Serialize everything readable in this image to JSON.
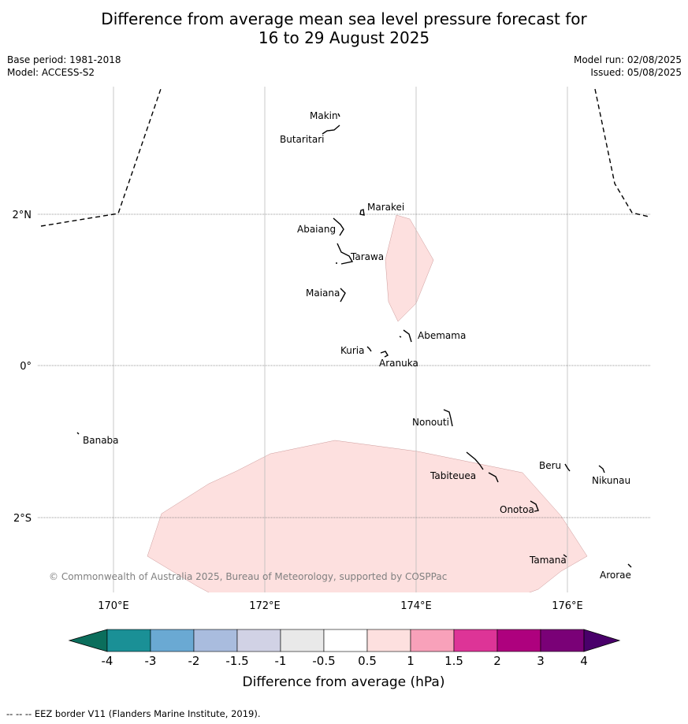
{
  "title_line1": "Difference from average mean sea level pressure forecast for",
  "title_line2": "16 to 29 August 2025",
  "base_period": "Base period: 1981-2018",
  "model": "Model: ACCESS-S2",
  "model_run": "Model run: 02/08/2025",
  "issued": "Issued: 05/08/2025",
  "copyright": "© Commonwealth of Australia 2025, Bureau of Meteorology, supported by COSPPac",
  "lat_labels": {
    "n2": "2°N",
    "eq": "0°",
    "s2": "2°S"
  },
  "lon_labels": {
    "e170": "170°E",
    "e172": "172°E",
    "e174": "174°E",
    "e176": "176°E"
  },
  "islands": {
    "makin": "Makin",
    "butaritari": "Butaritari",
    "marakei": "Marakei",
    "abaiang": "Abaiang",
    "tarawa": "Tarawa",
    "maiana": "Maiana",
    "abemama": "Abemama",
    "kuria": "Kuria",
    "aranuka": "Aranuka",
    "banaba": "Banaba",
    "nonouti": "Nonouti",
    "beru": "Beru",
    "nikunau": "Nikunau",
    "tabiteuea": "Tabiteuea",
    "onotoa": "Onotoa",
    "tamana": "Tamana",
    "arorae": "Arorae"
  },
  "colorbar": {
    "label": "Difference from average (hPa)",
    "ticks": [
      "-4",
      "-3",
      "-2",
      "-1.5",
      "-1",
      "-0.5",
      "0.5",
      "1",
      "1.5",
      "2",
      "3",
      "4"
    ],
    "colors": [
      "#1a9096",
      "#6aa9d3",
      "#a9bcde",
      "#d1d2e5",
      "#e9e9e9",
      "#ffffff",
      "#fde0df",
      "#f8a1ba",
      "#dd3497",
      "#ae017e",
      "#7a0177"
    ],
    "under_color": "#0b6e5c",
    "over_color": "#49006a",
    "anomaly_fill": "#fde0df"
  },
  "footnote": "--  --  -- EEZ border V11 (Flanders Marine Institute, 2019)."
}
